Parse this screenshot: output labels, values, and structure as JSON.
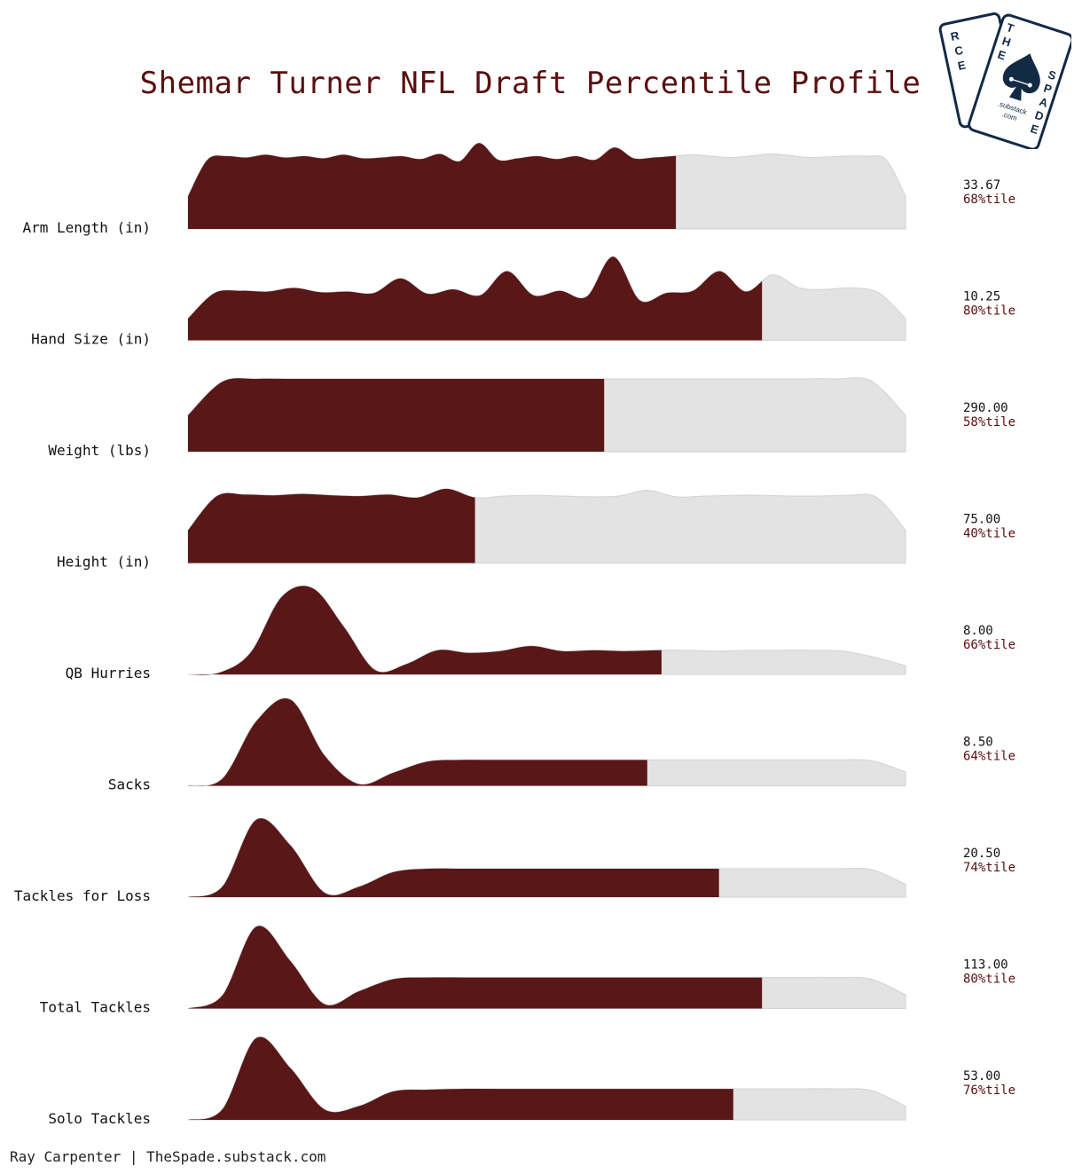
{
  "title": "Shemar Turner NFL Draft Percentile Profile",
  "credit": "Ray Carpenter | TheSpade.substack.com",
  "logo": {
    "line1": "RCE",
    "line2": "THE",
    "line3": "SPADE",
    "line4": ".substack",
    "line5": ".com"
  },
  "colors": {
    "fill": "#5a1718",
    "background_fill": "#e3e3e3",
    "title": "#5a0f0f",
    "percentile_text": "#5a0f0f",
    "logo": "#132a45"
  },
  "chart_data": {
    "type": "area",
    "title": "Shemar Turner NFL Draft Percentile Profile",
    "metrics": [
      {
        "label": "Arm Length (in)",
        "value": "33.67",
        "percentile_text": "68%tile",
        "percentile": 68,
        "shape": [
          0.45,
          0.95,
          1.0,
          0.98,
          1.02,
          0.98,
          1.0,
          0.97,
          1.02,
          0.97,
          0.98,
          1.0,
          0.96,
          1.03,
          0.93,
          1.18,
          0.95,
          0.97,
          1.0,
          0.96,
          1.0,
          0.95,
          1.12,
          0.97,
          0.98,
          1.0,
          1.02,
          1.0,
          0.98,
          1.0,
          1.03,
          1.01,
          0.98,
          0.99,
          1.0,
          1.0,
          0.95,
          0.45
        ]
      },
      {
        "label": "Hand Size (in)",
        "value": "10.25",
        "percentile_text": "80%tile",
        "percentile": 80,
        "shape": [
          0.3,
          0.65,
          0.68,
          0.67,
          0.72,
          0.66,
          0.67,
          0.65,
          0.85,
          0.64,
          0.7,
          0.62,
          0.95,
          0.62,
          0.68,
          0.6,
          1.15,
          0.55,
          0.65,
          0.68,
          0.95,
          0.67,
          0.9,
          0.72,
          0.7,
          0.72,
          0.65,
          0.3
        ]
      },
      {
        "label": "Weight (lbs)",
        "value": "290.00",
        "percentile_text": "58%tile",
        "percentile": 58,
        "shape": [
          0.5,
          0.96,
          1.0,
          1.0,
          1.0,
          1.0,
          1.0,
          1.0,
          1.0,
          1.0,
          1.0,
          1.0,
          1.0,
          1.0,
          1.0,
          1.0,
          1.0,
          1.0,
          1.0,
          1.0,
          0.97,
          0.5
        ]
      },
      {
        "label": "Height (in)",
        "value": "75.00",
        "percentile_text": "40%tile",
        "percentile": 40,
        "shape": [
          0.45,
          0.92,
          0.94,
          0.93,
          0.95,
          0.93,
          0.92,
          0.94,
          0.9,
          1.02,
          0.9,
          0.92,
          0.93,
          0.92,
          0.91,
          0.92,
          1.0,
          0.91,
          0.92,
          0.93,
          0.93,
          0.92,
          0.92,
          0.93,
          0.9,
          0.45
        ]
      },
      {
        "label": "QB Hurries",
        "value": "8.00",
        "percentile_text": "66%tile",
        "percentile": 66,
        "shape": [
          0.0,
          0.02,
          0.25,
          0.9,
          1.0,
          0.55,
          0.05,
          0.12,
          0.28,
          0.25,
          0.27,
          0.33,
          0.27,
          0.28,
          0.27,
          0.28,
          0.28,
          0.27,
          0.28,
          0.28,
          0.28,
          0.27,
          0.2,
          0.1
        ]
      },
      {
        "label": "Sacks",
        "value": "8.50",
        "percentile_text": "64%tile",
        "percentile": 64,
        "shape": [
          0.0,
          0.08,
          0.75,
          1.0,
          0.35,
          0.02,
          0.15,
          0.28,
          0.3,
          0.3,
          0.3,
          0.3,
          0.3,
          0.3,
          0.3,
          0.3,
          0.3,
          0.3,
          0.3,
          0.3,
          0.29,
          0.16
        ]
      },
      {
        "label": "Tackles for Loss",
        "value": "20.50",
        "percentile_text": "74%tile",
        "percentile": 74,
        "shape": [
          0.0,
          0.12,
          0.9,
          0.6,
          0.05,
          0.12,
          0.29,
          0.33,
          0.33,
          0.33,
          0.33,
          0.33,
          0.33,
          0.33,
          0.33,
          0.33,
          0.33,
          0.33,
          0.33,
          0.33,
          0.32,
          0.15
        ]
      },
      {
        "label": "Total Tackles",
        "value": "113.00",
        "percentile_text": "80%tile",
        "percentile": 80,
        "shape": [
          0.0,
          0.15,
          0.95,
          0.55,
          0.05,
          0.2,
          0.34,
          0.36,
          0.36,
          0.36,
          0.36,
          0.36,
          0.36,
          0.36,
          0.36,
          0.36,
          0.36,
          0.36,
          0.36,
          0.36,
          0.34,
          0.16
        ]
      },
      {
        "label": "Solo Tackles",
        "value": "53.00",
        "percentile_text": "76%tile",
        "percentile": 76,
        "shape": [
          0.0,
          0.12,
          0.95,
          0.6,
          0.12,
          0.16,
          0.33,
          0.35,
          0.36,
          0.36,
          0.36,
          0.36,
          0.36,
          0.36,
          0.36,
          0.36,
          0.36,
          0.36,
          0.36,
          0.36,
          0.34,
          0.16
        ]
      }
    ]
  }
}
